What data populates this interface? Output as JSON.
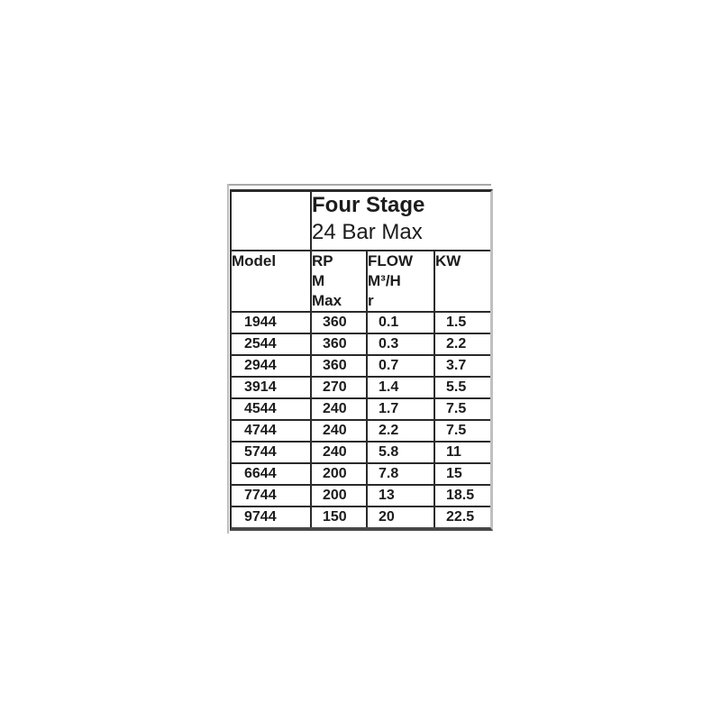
{
  "page": {
    "background_color": "#ffffff"
  },
  "spec_table": {
    "title": "Four Stage",
    "subtitle": "24 Bar Max",
    "column_headers": [
      "Model",
      "RP\nM\nMax",
      "FLOW\nM³/H\nr",
      "KW"
    ],
    "rows": [
      {
        "model": "1944",
        "rpm_max": "360",
        "flow_m3_hr": "0.1",
        "kw": "1.5"
      },
      {
        "model": "2544",
        "rpm_max": "360",
        "flow_m3_hr": "0.3",
        "kw": "2.2"
      },
      {
        "model": "2944",
        "rpm_max": "360",
        "flow_m3_hr": "0.7",
        "kw": "3.7"
      },
      {
        "model": "3914",
        "rpm_max": "270",
        "flow_m3_hr": "1.4",
        "kw": "5.5"
      },
      {
        "model": "4544",
        "rpm_max": "240",
        "flow_m3_hr": "1.7",
        "kw": "7.5"
      },
      {
        "model": "4744",
        "rpm_max": "240",
        "flow_m3_hr": "2.2",
        "kw": "7.5"
      },
      {
        "model": "5744",
        "rpm_max": "240",
        "flow_m3_hr": "5.8",
        "kw": "11"
      },
      {
        "model": "6644",
        "rpm_max": "200",
        "flow_m3_hr": "7.8",
        "kw": "15"
      },
      {
        "model": "7744",
        "rpm_max": "200",
        "flow_m3_hr": "13",
        "kw": "18.5"
      },
      {
        "model": "9744",
        "rpm_max": "150",
        "flow_m3_hr": "20",
        "kw": "22.5"
      }
    ],
    "colors": {
      "border": "#2a2a2a",
      "clipped_right_edge": "#c0c0c0",
      "text": "#1c1c1c",
      "background": "#ffffff"
    }
  }
}
